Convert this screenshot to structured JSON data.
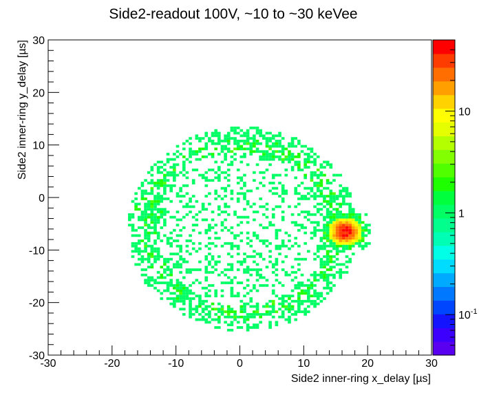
{
  "chart_data": {
    "type": "heatmap",
    "title": "Side2-readout 100V, ~10 to ~30 keVee",
    "xlabel": "Side2 inner-ring x_delay [µs]",
    "ylabel": "Side2 inner-ring y_delay [µs]",
    "xlim": [
      -30,
      30
    ],
    "ylim": [
      -30,
      30
    ],
    "x_ticks": [
      "-30",
      "-20",
      "-10",
      "0",
      "10",
      "20",
      "30"
    ],
    "y_ticks": [
      "-30",
      "-20",
      "-10",
      "0",
      "10",
      "20",
      "30"
    ],
    "z_scale": "log",
    "z_ticks": [
      "10",
      "1",
      "10"
    ],
    "z_tick_exponent": [
      "",
      "",
      "-1"
    ],
    "grid": false,
    "bin_width": 0.5,
    "structure": {
      "ring_center": [
        0.5,
        -6
      ],
      "ring_radii": [
        15.5,
        17.5
      ],
      "ring_peak_count": 2,
      "hotspot_center": [
        16.5,
        -6.5
      ],
      "hotspot_peak_count": 40,
      "side_cluster_center": [
        -13.5,
        -2.5
      ],
      "side_cluster_peak_count": 3
    },
    "colorbar_colors": [
      "#5a00f0",
      "#3c00ff",
      "#1414ff",
      "#0046ff",
      "#0078ff",
      "#00aaff",
      "#00dcff",
      "#00ffe6",
      "#00ffb4",
      "#00ff8c",
      "#00ff64",
      "#00ff3c",
      "#1eff00",
      "#50ff00",
      "#82ff00",
      "#b4ff00",
      "#e6ff00",
      "#ffff00",
      "#ffd200",
      "#ffa000",
      "#ff6e00",
      "#ff3c00",
      "#ff0000"
    ]
  }
}
